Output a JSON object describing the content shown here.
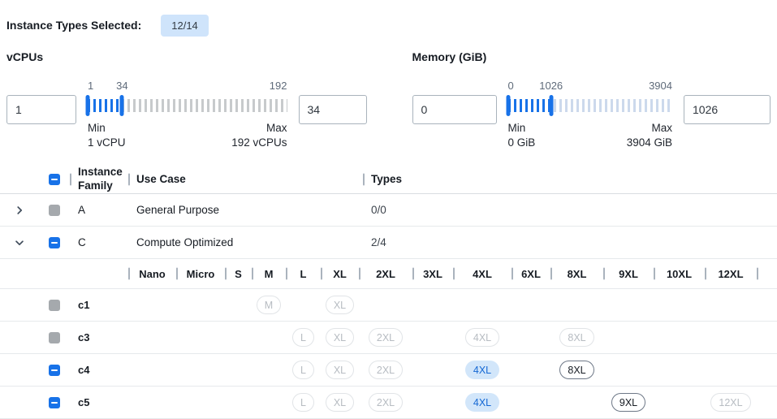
{
  "header": {
    "label": "Instance Types Selected:",
    "badge": "12/14"
  },
  "colors": {
    "accent": "#1872e8",
    "accent_light": "#d2e6fa",
    "badge_bg": "#cfe4fb",
    "tick_unselected": "#c7cacc",
    "tick_unselected_memory": "#ccd9ec",
    "checkbox_disabled": "#a5a9ad"
  },
  "filters": {
    "vcpus": {
      "title": "vCPUs",
      "min_input": "1",
      "max_input": "34",
      "slider": {
        "min": 1,
        "max": 192,
        "selected_min": 1,
        "selected_max": 34
      },
      "min_caption": "Min",
      "min_value": "1 vCPU",
      "max_caption": "Max",
      "max_value": "192 vCPUs"
    },
    "memory": {
      "title": "Memory (GiB)",
      "min_input": "0",
      "max_input": "1026",
      "slider": {
        "min": 0,
        "max": 3904,
        "selected_min": 0,
        "selected_max": 1026
      },
      "min_caption": "Min",
      "min_value": "0 GiB",
      "max_caption": "Max",
      "max_value": "3904 GiB"
    }
  },
  "table": {
    "columns": {
      "family": "Instance Family",
      "use_case": "Use Case",
      "types": "Types"
    },
    "select_all_state": "indeterminate",
    "size_columns": [
      "Nano",
      "Micro",
      "S",
      "M",
      "L",
      "XL",
      "2XL",
      "3XL",
      "4XL",
      "6XL",
      "8XL",
      "9XL",
      "10XL",
      "12XL"
    ],
    "families": [
      {
        "name": "A",
        "use_case": "General Purpose",
        "types": "0/0",
        "expanded": false,
        "checkbox": "disabled"
      },
      {
        "name": "C",
        "use_case": "Compute Optimized",
        "types": "2/4",
        "expanded": true,
        "checkbox": "indeterminate",
        "instances": [
          {
            "name": "c1",
            "checkbox": "disabled",
            "sizes": {
              "M": "disabled",
              "XL": "disabled"
            }
          },
          {
            "name": "c3",
            "checkbox": "disabled",
            "sizes": {
              "L": "disabled",
              "XL": "disabled",
              "2XL": "disabled",
              "4XL": "disabled",
              "8XL": "disabled"
            }
          },
          {
            "name": "c4",
            "checkbox": "indeterminate",
            "sizes": {
              "L": "disabled",
              "XL": "disabled",
              "2XL": "disabled",
              "4XL": "selected",
              "8XL": "enabled"
            }
          },
          {
            "name": "c5",
            "checkbox": "indeterminate",
            "sizes": {
              "L": "disabled",
              "XL": "disabled",
              "2XL": "disabled",
              "4XL": "selected",
              "9XL": "enabled",
              "12XL": "disabled"
            }
          }
        ]
      }
    ]
  }
}
